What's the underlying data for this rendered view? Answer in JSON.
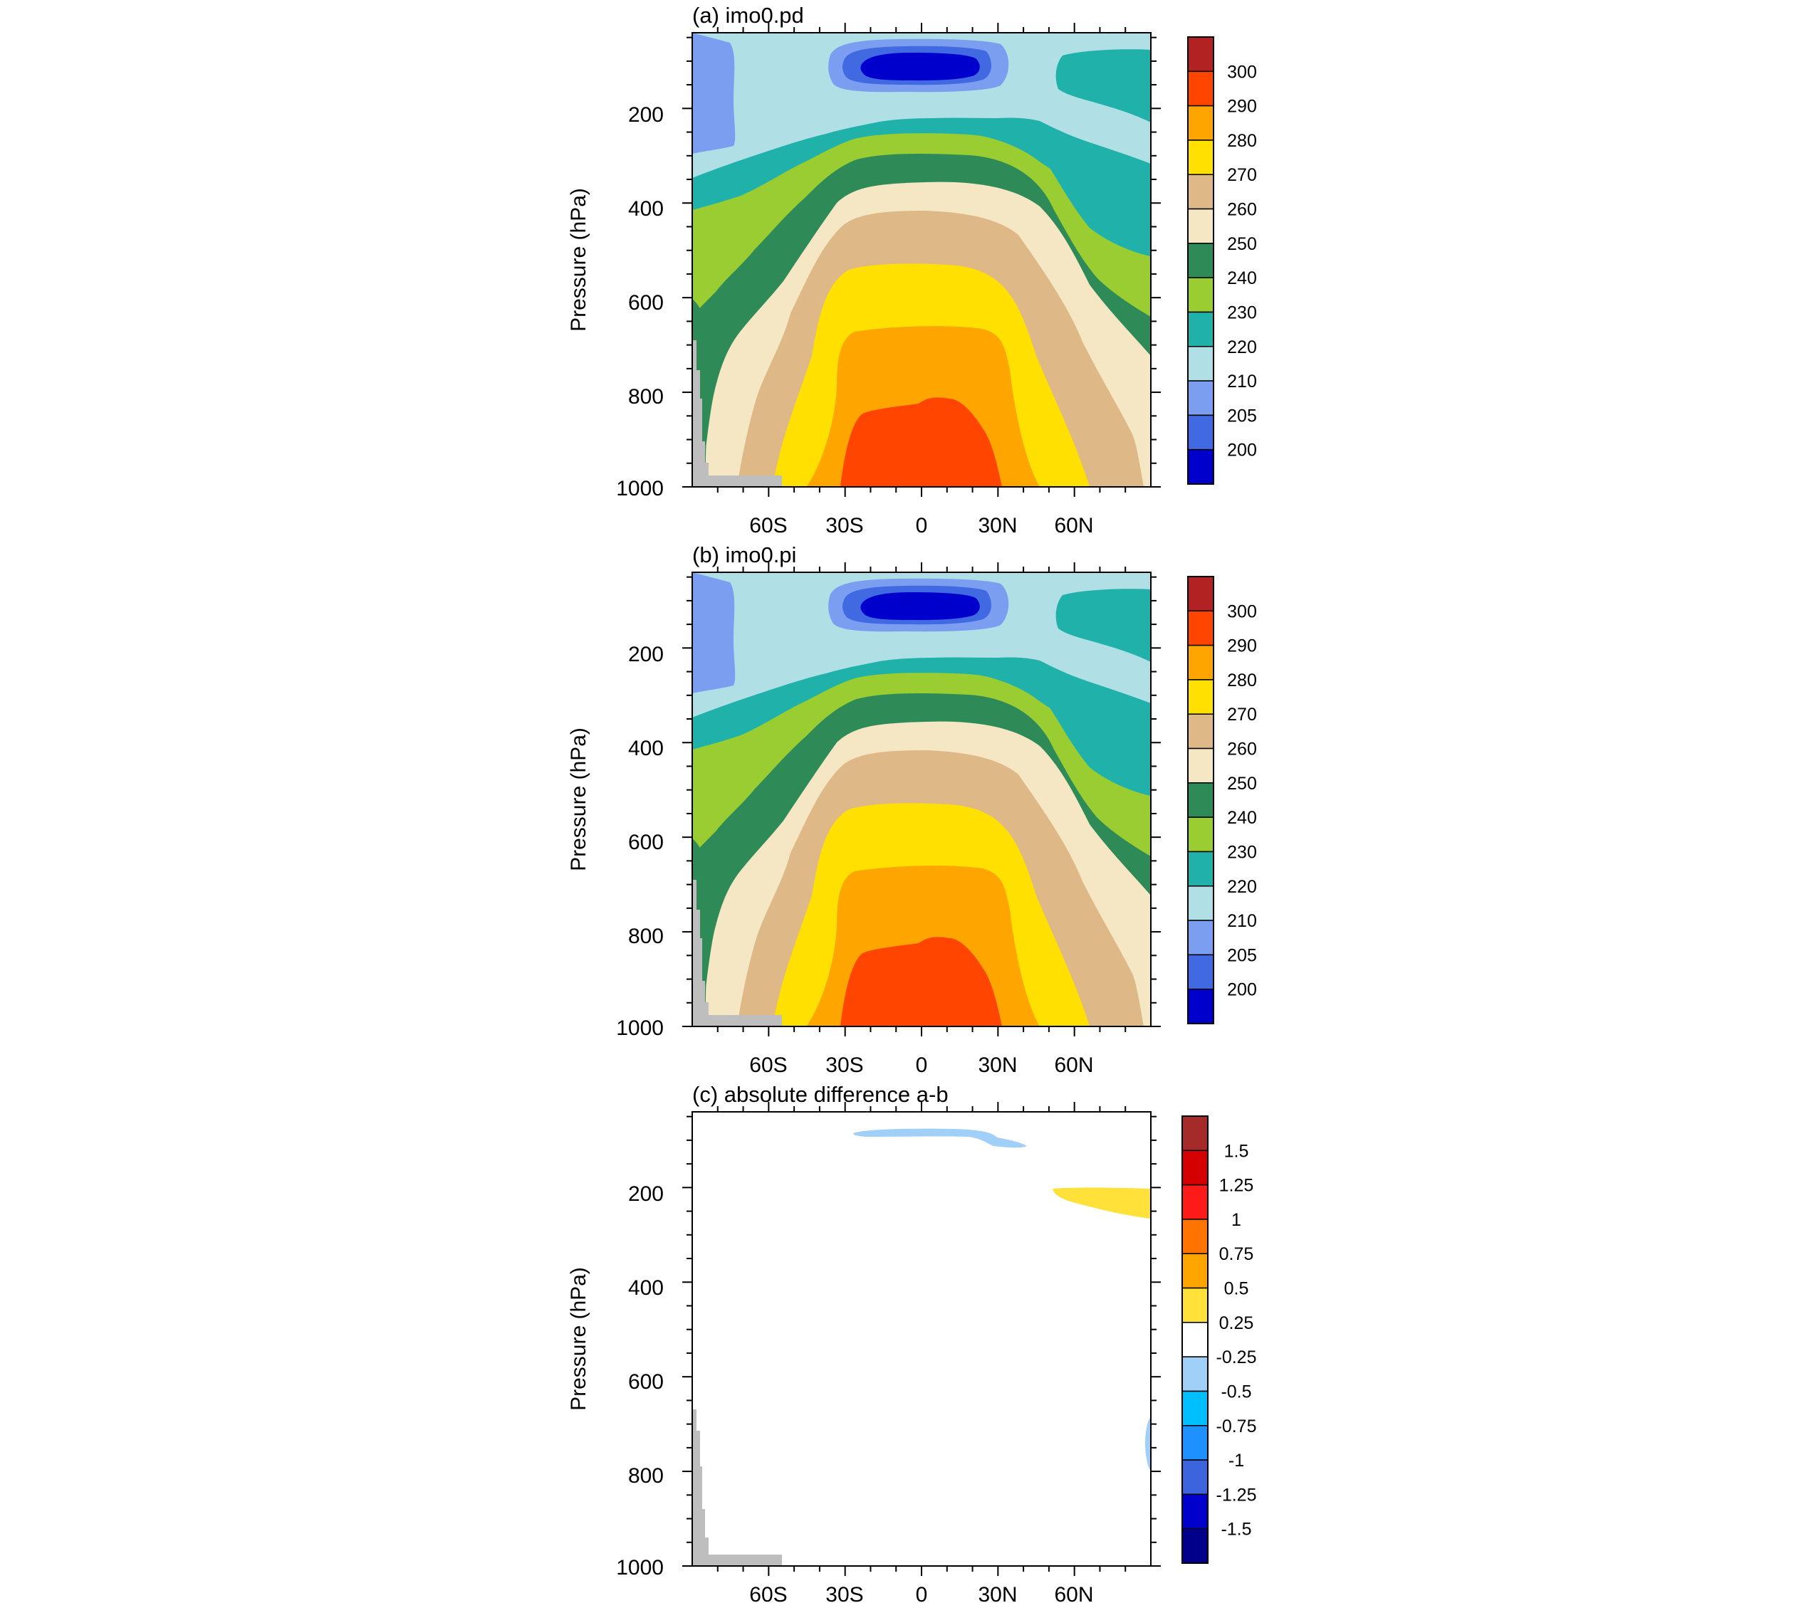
{
  "chart_data": [
    {
      "type": "contour",
      "title": "(a) imo0.pd",
      "ylabel": "Pressure (hPa)",
      "y_ticks": [
        "200",
        "400",
        "600",
        "800",
        "1000"
      ],
      "x_ticks": [
        "60S",
        "30S",
        "0",
        "30N",
        "60N"
      ],
      "x_values": [
        -60,
        -30,
        0,
        30,
        60
      ],
      "y_values": [
        200,
        400,
        600,
        800,
        1000
      ],
      "xlim": [
        -90,
        90
      ],
      "ylim": [
        1000,
        40
      ],
      "colorbar_labels": [
        "300",
        "290",
        "280",
        "270",
        "260",
        "250",
        "240",
        "230",
        "220",
        "210",
        "205",
        "200"
      ],
      "colorbar_colors": [
        "#b22222",
        "#ff4500",
        "#ffa500",
        "#ffe000",
        "#deb887",
        "#f5e6c4",
        "#2e8b57",
        "#9acd32",
        "#20b2aa",
        "#b0e0e6",
        "#7b9ef0",
        "#4169e1",
        "#0000cd"
      ],
      "field_colors": {
        "c200": "#0000cd",
        "c205": "#4169e1",
        "c210": "#7b9ef0",
        "c220": "#b0e0e6",
        "c230": "#20b2aa",
        "c240": "#9acd32",
        "c250": "#2e8b57",
        "c260": "#f5e6c4",
        "c270": "#deb887",
        "c280": "#ffe000",
        "c290": "#ffa500",
        "c300": "#ff4500",
        "topo": "#bebebe"
      }
    },
    {
      "type": "contour",
      "title": "(b) imo0.pi",
      "ylabel": "Pressure (hPa)",
      "y_ticks": [
        "200",
        "400",
        "600",
        "800",
        "1000"
      ],
      "x_ticks": [
        "60S",
        "30S",
        "0",
        "30N",
        "60N"
      ],
      "x_values": [
        -60,
        -30,
        0,
        30,
        60
      ],
      "y_values": [
        200,
        400,
        600,
        800,
        1000
      ],
      "xlim": [
        -90,
        90
      ],
      "ylim": [
        1000,
        40
      ],
      "colorbar_labels": [
        "300",
        "290",
        "280",
        "270",
        "260",
        "250",
        "240",
        "230",
        "220",
        "210",
        "205",
        "200"
      ],
      "colorbar_colors": [
        "#b22222",
        "#ff4500",
        "#ffa500",
        "#ffe000",
        "#deb887",
        "#f5e6c4",
        "#2e8b57",
        "#9acd32",
        "#20b2aa",
        "#b0e0e6",
        "#7b9ef0",
        "#4169e1",
        "#0000cd"
      ],
      "field_colors": {
        "c200": "#0000cd",
        "c205": "#4169e1",
        "c210": "#7b9ef0",
        "c220": "#b0e0e6",
        "c230": "#20b2aa",
        "c240": "#9acd32",
        "c250": "#2e8b57",
        "c260": "#f5e6c4",
        "c270": "#deb887",
        "c280": "#ffe000",
        "c290": "#ffa500",
        "c300": "#ff4500",
        "topo": "#bebebe"
      }
    },
    {
      "type": "contour",
      "title": "(c) absolute difference a-b",
      "ylabel": "Pressure (hPa)",
      "y_ticks": [
        "200",
        "400",
        "600",
        "800",
        "1000"
      ],
      "x_ticks": [
        "60S",
        "30S",
        "0",
        "30N",
        "60N"
      ],
      "x_values": [
        -60,
        -30,
        0,
        30,
        60
      ],
      "y_values": [
        200,
        400,
        600,
        800,
        1000
      ],
      "xlim": [
        -90,
        90
      ],
      "ylim": [
        1000,
        40
      ],
      "colorbar_labels": [
        "1.5",
        "1.25",
        "1",
        "0.75",
        "0.5",
        "0.25",
        "-0.25",
        "-0.5",
        "-0.75",
        "-1",
        "-1.25",
        "-1.5"
      ],
      "colorbar_colors": [
        "#a52a2a",
        "#d40000",
        "#ff1a1a",
        "#ff7400",
        "#ffa500",
        "#ffe13a",
        "#ffffff",
        "#a0cff8",
        "#00bfff",
        "#1e90ff",
        "#3c64dc",
        "#0000cd",
        "#00008b"
      ],
      "field_colors": {
        "neg": "#a0cff8",
        "pos": "#ffe13a",
        "topo": "#bebebe"
      }
    }
  ]
}
